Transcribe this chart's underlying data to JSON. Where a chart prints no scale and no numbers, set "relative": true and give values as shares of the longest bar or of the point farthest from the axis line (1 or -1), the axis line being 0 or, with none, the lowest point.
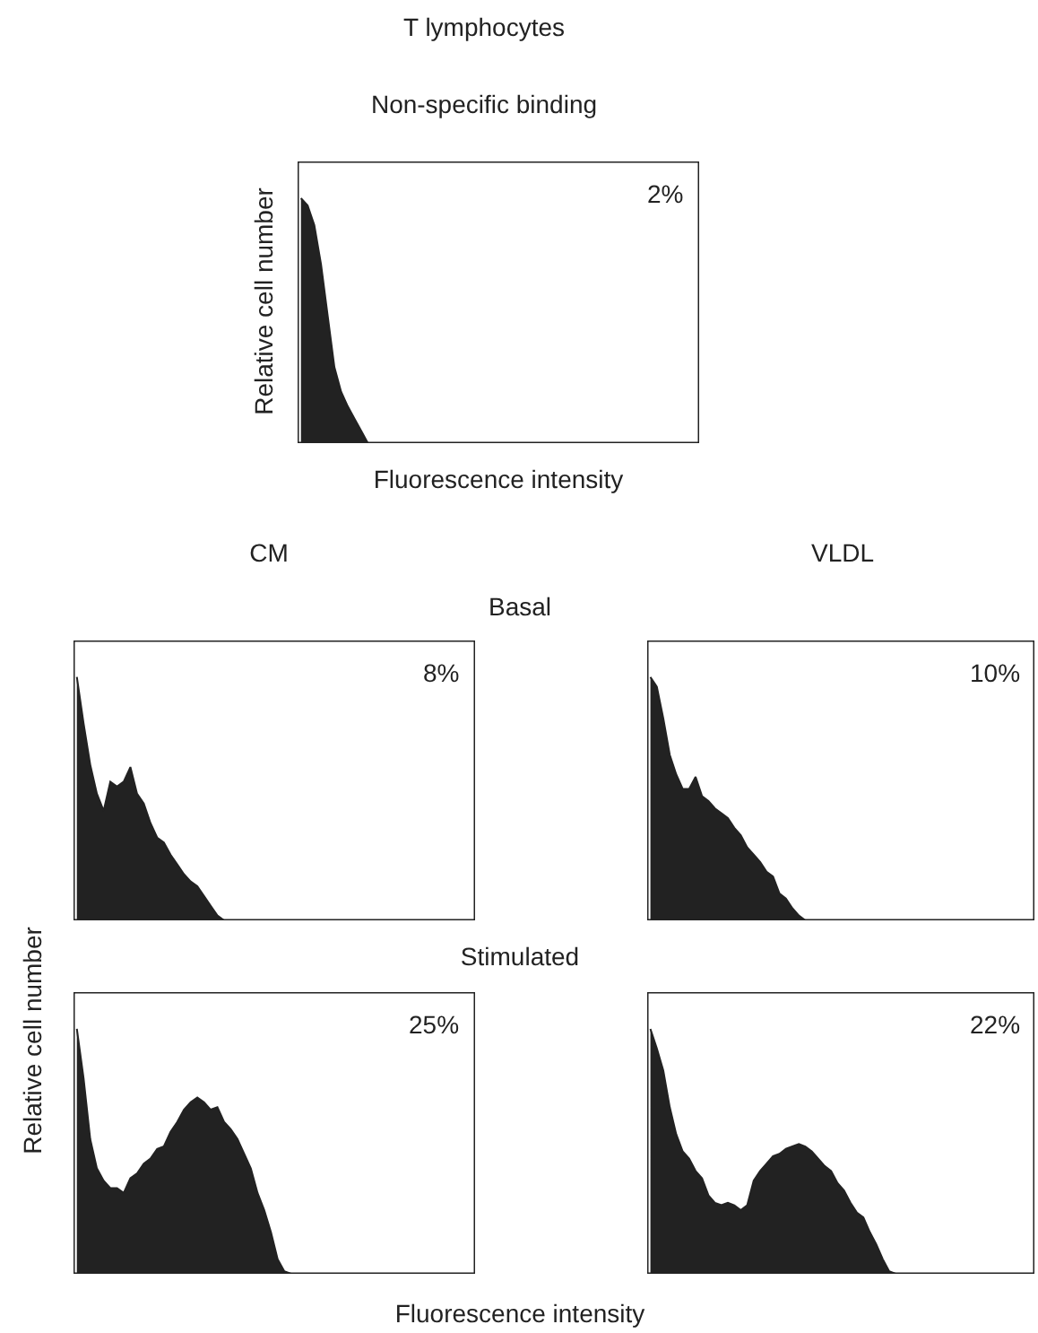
{
  "chart_data": [
    {
      "type": "area",
      "title": "T lymphocytes",
      "subtitle": "Non-specific binding",
      "xlabel": "Fluorescence intensity",
      "ylabel": "Relative cell number",
      "annotations": [
        "2%"
      ],
      "relative": true,
      "color": "#222222",
      "categories": [
        null,
        null,
        null,
        null,
        null,
        null,
        null,
        null,
        null,
        null,
        null,
        null,
        null,
        null,
        null,
        null,
        null,
        null,
        null,
        null,
        null,
        null,
        null,
        null,
        null,
        null,
        null,
        null,
        null,
        null,
        null,
        null,
        null,
        null,
        null,
        null,
        null,
        null,
        null,
        null,
        null,
        null,
        null,
        null,
        null,
        null,
        null,
        null,
        null,
        null,
        null,
        null,
        null,
        null,
        null,
        null,
        null,
        null,
        null,
        null
      ],
      "values": [
        1,
        0.97,
        0.89,
        0.73,
        0.52,
        0.31,
        0.21,
        0.15,
        0.1,
        0.05,
        0,
        0,
        0,
        0,
        0,
        0,
        0,
        0,
        0,
        0,
        0,
        0,
        0,
        0,
        0,
        0,
        0,
        0,
        0,
        0,
        0,
        0,
        0,
        0,
        0,
        0,
        0,
        0,
        0,
        0,
        0,
        0,
        0,
        0,
        0,
        0,
        0,
        0,
        0,
        0,
        0,
        0,
        0,
        0,
        0,
        0,
        0,
        0,
        0,
        0
      ]
    },
    {
      "type": "area",
      "annotations": [
        "CM",
        "Basal",
        "8%"
      ],
      "relative": true,
      "color": "#222222",
      "categories": [
        null,
        null,
        null,
        null,
        null,
        null,
        null,
        null,
        null,
        null,
        null,
        null,
        null,
        null,
        null,
        null,
        null,
        null,
        null,
        null,
        null,
        null,
        null,
        null,
        null,
        null,
        null,
        null,
        null,
        null,
        null,
        null,
        null,
        null,
        null,
        null,
        null,
        null,
        null,
        null,
        null,
        null,
        null,
        null,
        null,
        null,
        null,
        null,
        null,
        null,
        null,
        null,
        null,
        null,
        null,
        null,
        null,
        null,
        null,
        null
      ],
      "values": [
        1,
        0.81,
        0.64,
        0.52,
        0.45,
        0.57,
        0.55,
        0.57,
        0.63,
        0.52,
        0.48,
        0.4,
        0.34,
        0.32,
        0.27,
        0.23,
        0.19,
        0.16,
        0.14,
        0.1,
        0.06,
        0.02,
        0,
        0,
        0,
        0,
        0,
        0,
        0,
        0,
        0,
        0,
        0,
        0,
        0,
        0,
        0,
        0,
        0,
        0,
        0,
        0,
        0,
        0,
        0,
        0,
        0,
        0,
        0,
        0,
        0,
        0,
        0,
        0,
        0,
        0,
        0,
        0,
        0,
        0
      ]
    },
    {
      "type": "area",
      "annotations": [
        "VLDL",
        "10%"
      ],
      "relative": true,
      "color": "#222222",
      "categories": [
        null,
        null,
        null,
        null,
        null,
        null,
        null,
        null,
        null,
        null,
        null,
        null,
        null,
        null,
        null,
        null,
        null,
        null,
        null,
        null,
        null,
        null,
        null,
        null,
        null,
        null,
        null,
        null,
        null,
        null,
        null,
        null,
        null,
        null,
        null,
        null,
        null,
        null,
        null,
        null,
        null,
        null,
        null,
        null,
        null,
        null,
        null,
        null,
        null,
        null,
        null,
        null,
        null,
        null,
        null,
        null,
        null,
        null,
        null,
        null
      ],
      "values": [
        1,
        0.96,
        0.83,
        0.68,
        0.6,
        0.54,
        0.54,
        0.59,
        0.51,
        0.49,
        0.46,
        0.44,
        0.42,
        0.38,
        0.35,
        0.3,
        0.27,
        0.24,
        0.2,
        0.18,
        0.11,
        0.09,
        0.05,
        0.02,
        0,
        0,
        0,
        0,
        0,
        0,
        0,
        0,
        0,
        0,
        0,
        0,
        0,
        0,
        0,
        0,
        0,
        0,
        0,
        0,
        0,
        0,
        0,
        0,
        0,
        0,
        0,
        0,
        0,
        0,
        0,
        0,
        0,
        0,
        0,
        0
      ]
    },
    {
      "type": "area",
      "title": "Stimulated",
      "xlabel": "Fluorescence intensity",
      "ylabel": "Relative cell number",
      "annotations": [
        "25%"
      ],
      "relative": true,
      "color": "#222222",
      "categories": [
        null,
        null,
        null,
        null,
        null,
        null,
        null,
        null,
        null,
        null,
        null,
        null,
        null,
        null,
        null,
        null,
        null,
        null,
        null,
        null,
        null,
        null,
        null,
        null,
        null,
        null,
        null,
        null,
        null,
        null,
        null,
        null,
        null,
        null,
        null,
        null,
        null,
        null,
        null,
        null,
        null,
        null,
        null,
        null,
        null,
        null,
        null,
        null,
        null,
        null,
        null,
        null,
        null,
        null,
        null,
        null,
        null,
        null,
        null,
        null
      ],
      "values": [
        1,
        0.8,
        0.55,
        0.43,
        0.38,
        0.35,
        0.35,
        0.33,
        0.39,
        0.41,
        0.45,
        0.47,
        0.51,
        0.52,
        0.58,
        0.62,
        0.67,
        0.7,
        0.72,
        0.7,
        0.67,
        0.68,
        0.62,
        0.59,
        0.55,
        0.49,
        0.43,
        0.33,
        0.26,
        0.17,
        0.06,
        0.01,
        0,
        0,
        0,
        0,
        0,
        0,
        0,
        0,
        0,
        0,
        0,
        0,
        0,
        0,
        0,
        0,
        0,
        0,
        0,
        0,
        0,
        0,
        0,
        0,
        0,
        0,
        0,
        0
      ]
    },
    {
      "type": "area",
      "annotations": [
        "22%"
      ],
      "relative": true,
      "color": "#222222",
      "categories": [
        null,
        null,
        null,
        null,
        null,
        null,
        null,
        null,
        null,
        null,
        null,
        null,
        null,
        null,
        null,
        null,
        null,
        null,
        null,
        null,
        null,
        null,
        null,
        null,
        null,
        null,
        null,
        null,
        null,
        null,
        null,
        null,
        null,
        null,
        null,
        null,
        null,
        null,
        null,
        null,
        null,
        null,
        null,
        null,
        null,
        null,
        null,
        null,
        null,
        null,
        null,
        null,
        null,
        null,
        null,
        null,
        null,
        null,
        null,
        null
      ],
      "values": [
        1,
        0.92,
        0.83,
        0.68,
        0.57,
        0.5,
        0.47,
        0.42,
        0.39,
        0.32,
        0.29,
        0.28,
        0.29,
        0.28,
        0.26,
        0.28,
        0.38,
        0.42,
        0.45,
        0.48,
        0.49,
        0.51,
        0.52,
        0.53,
        0.52,
        0.5,
        0.47,
        0.44,
        0.42,
        0.37,
        0.34,
        0.29,
        0.25,
        0.23,
        0.17,
        0.12,
        0.06,
        0.01,
        0,
        0,
        0,
        0,
        0,
        0,
        0,
        0,
        0,
        0,
        0,
        0,
        0,
        0,
        0,
        0,
        0,
        0,
        0,
        0,
        0,
        0
      ]
    }
  ]
}
